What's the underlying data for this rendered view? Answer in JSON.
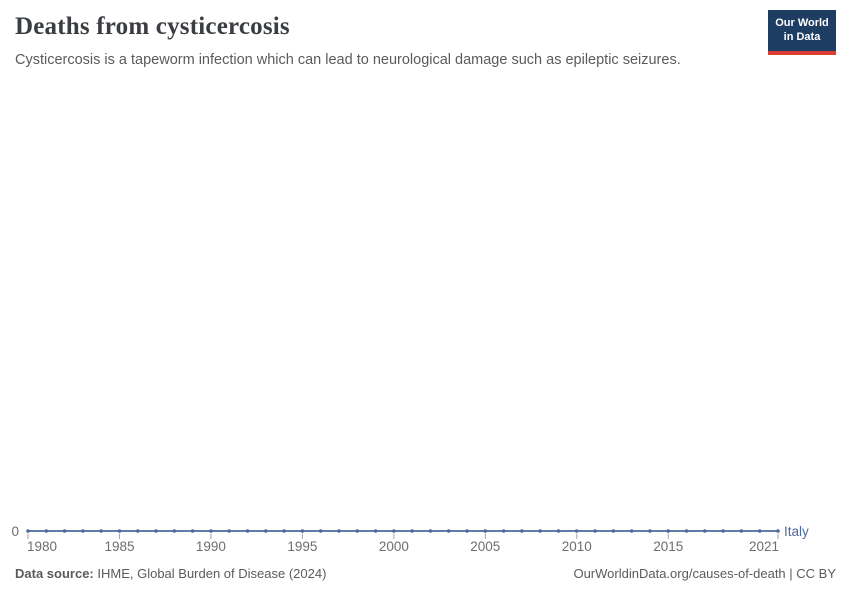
{
  "header": {
    "title": "Deaths from cysticercosis",
    "subtitle": "Cysticercosis is a tapeworm infection which can lead to neurological damage such as epileptic seizures.",
    "logo": {
      "line1": "Our World",
      "line2": "in Data",
      "bg_color": "#1d3d63",
      "bar_color": "#dc3d33"
    }
  },
  "chart_data": {
    "type": "line",
    "title": "Deaths from cysticercosis",
    "xlabel": "",
    "ylabel": "",
    "grid": false,
    "marker": "circle",
    "xlim": [
      1980,
      2021
    ],
    "ylim": [
      0,
      0
    ],
    "x_ticks": [
      1980,
      1985,
      1990,
      1995,
      2000,
      2005,
      2010,
      2015,
      2021
    ],
    "y_ticks": [
      0
    ],
    "axis_label_color": "#6e6e6e",
    "tick_color": "#a6a6a6",
    "series": [
      {
        "name": "Italy",
        "color": "#4C6A9C",
        "x": [
          1980,
          1981,
          1982,
          1983,
          1984,
          1985,
          1986,
          1987,
          1988,
          1989,
          1990,
          1991,
          1992,
          1993,
          1994,
          1995,
          1996,
          1997,
          1998,
          1999,
          2000,
          2001,
          2002,
          2003,
          2004,
          2005,
          2006,
          2007,
          2008,
          2009,
          2010,
          2011,
          2012,
          2013,
          2014,
          2015,
          2016,
          2017,
          2018,
          2019,
          2020,
          2021
        ],
        "values": [
          0,
          0,
          0,
          0,
          0,
          0,
          0,
          0,
          0,
          0,
          0,
          0,
          0,
          0,
          0,
          0,
          0,
          0,
          0,
          0,
          0,
          0,
          0,
          0,
          0,
          0,
          0,
          0,
          0,
          0,
          0,
          0,
          0,
          0,
          0,
          0,
          0,
          0,
          0,
          0,
          0,
          0
        ]
      }
    ]
  },
  "footer": {
    "source_label": "Data source:",
    "source_text": " IHME, Global Burden of Disease (2024)",
    "credit": "OurWorldinData.org/causes-of-death | CC BY"
  }
}
